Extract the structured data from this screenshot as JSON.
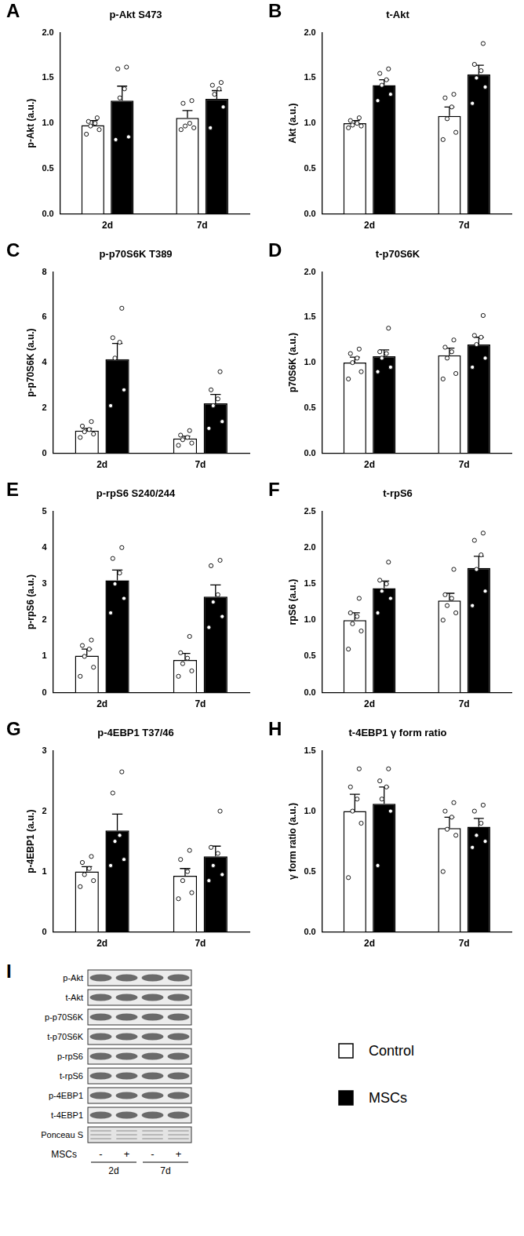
{
  "chart_data": [
    {
      "panel": "A",
      "type": "bar",
      "title": "p-Akt S473",
      "ylabel": "p-Akt (a.u.)",
      "categories": [
        "2d",
        "7d"
      ],
      "grid": false,
      "ylim": [
        0,
        2
      ],
      "yticks": [
        {
          "value": 0,
          "label": "0.0"
        },
        0.5,
        {
          "value": 1,
          "label": "1.0"
        },
        1.5,
        {
          "value": 2,
          "label": "2.0"
        }
      ],
      "series": [
        {
          "name": "Control",
          "color": "#ffffff",
          "values": [
            0.98,
            1.06
          ],
          "errors": [
            0.05,
            0.08
          ],
          "points": [
            [
              0.88,
              0.93,
              0.97,
              1.0,
              1.02,
              1.06
            ],
            [
              0.93,
              0.95,
              0.97,
              1.0,
              1.22,
              1.25
            ]
          ]
        },
        {
          "name": "MSCs",
          "color": "#000000",
          "values": [
            1.25,
            1.27
          ],
          "errors": [
            0.16,
            0.09
          ],
          "points": [
            [
              0.82,
              0.85,
              1.28,
              1.38,
              1.6,
              1.62
            ],
            [
              0.95,
              1.18,
              1.32,
              1.38,
              1.42,
              1.45
            ]
          ]
        }
      ]
    },
    {
      "panel": "B",
      "type": "bar",
      "title": "t-Akt",
      "ylabel": "Akt (a.u.)",
      "categories": [
        "2d",
        "7d"
      ],
      "grid": false,
      "ylim": [
        0,
        2
      ],
      "yticks": [
        {
          "value": 0,
          "label": "0.0"
        },
        0.5,
        {
          "value": 1,
          "label": "1.0"
        },
        1.5,
        {
          "value": 2,
          "label": "2.0"
        }
      ],
      "series": [
        {
          "name": "Control",
          "color": "#ffffff",
          "values": [
            1.0,
            1.08
          ],
          "errors": [
            0.03,
            0.1
          ],
          "points": [
            [
              0.95,
              0.97,
              0.98,
              1.0,
              1.03,
              1.06
            ],
            [
              0.82,
              0.9,
              1.05,
              1.18,
              1.28,
              1.32
            ]
          ]
        },
        {
          "name": "MSCs",
          "color": "#000000",
          "values": [
            1.42,
            1.54
          ],
          "errors": [
            0.06,
            0.1
          ],
          "points": [
            [
              1.25,
              1.32,
              1.42,
              1.48,
              1.55,
              1.6
            ],
            [
              1.22,
              1.4,
              1.5,
              1.58,
              1.65,
              1.88
            ]
          ]
        }
      ]
    },
    {
      "panel": "C",
      "type": "bar",
      "title": "p-p70S6K T389",
      "ylabel": "p-p70S6K (a.u.)",
      "categories": [
        "2d",
        "7d"
      ],
      "grid": false,
      "ylim": [
        0,
        8
      ],
      "yticks": [
        0,
        2,
        4,
        6,
        8
      ],
      "series": [
        {
          "name": "Control",
          "color": "#ffffff",
          "values": [
            1.0,
            0.65
          ],
          "errors": [
            0.1,
            0.1
          ],
          "points": [
            [
              0.7,
              0.85,
              0.95,
              1.05,
              1.2,
              1.4
            ],
            [
              0.35,
              0.45,
              0.6,
              0.7,
              0.8,
              1.0
            ]
          ]
        },
        {
          "name": "MSCs",
          "color": "#000000",
          "values": [
            4.15,
            2.2
          ],
          "errors": [
            0.7,
            0.4
          ],
          "points": [
            [
              2.1,
              2.8,
              4.2,
              4.9,
              5.1,
              6.4
            ],
            [
              1.1,
              1.4,
              2.1,
              2.4,
              2.8,
              3.6
            ]
          ]
        }
      ]
    },
    {
      "panel": "D",
      "type": "bar",
      "title": "t-p70S6K",
      "ylabel": "p70S6K (a.u.)",
      "categories": [
        "2d",
        "7d"
      ],
      "grid": false,
      "ylim": [
        0,
        2
      ],
      "yticks": [
        {
          "value": 0,
          "label": "0.0"
        },
        0.5,
        {
          "value": 1,
          "label": "1.0"
        },
        1.5,
        {
          "value": 2,
          "label": "2.0"
        }
      ],
      "series": [
        {
          "name": "Control",
          "color": "#ffffff",
          "values": [
            1.0,
            1.08
          ],
          "errors": [
            0.06,
            0.08
          ],
          "points": [
            [
              0.82,
              0.9,
              1.0,
              1.05,
              1.1,
              1.15
            ],
            [
              0.82,
              0.88,
              1.05,
              1.12,
              1.17,
              1.25
            ]
          ]
        },
        {
          "name": "MSCs",
          "color": "#000000",
          "values": [
            1.07,
            1.2
          ],
          "errors": [
            0.07,
            0.08
          ],
          "points": [
            [
              0.9,
              0.95,
              1.05,
              1.1,
              1.12,
              1.38
            ],
            [
              0.95,
              1.05,
              1.2,
              1.28,
              1.3,
              1.52
            ]
          ]
        }
      ]
    },
    {
      "panel": "E",
      "type": "bar",
      "title": "p-rpS6 S240/244",
      "ylabel": "p-rpS6 (a.u.)",
      "categories": [
        "2d",
        "7d"
      ],
      "grid": false,
      "ylim": [
        0,
        5
      ],
      "yticks": [
        0,
        1,
        2,
        3,
        4,
        5
      ],
      "series": [
        {
          "name": "Control",
          "color": "#ffffff",
          "values": [
            1.02,
            0.9
          ],
          "errors": [
            0.18,
            0.18
          ],
          "points": [
            [
              0.45,
              0.7,
              1.0,
              1.2,
              1.3,
              1.45
            ],
            [
              0.45,
              0.6,
              0.8,
              0.95,
              1.1,
              1.55
            ]
          ]
        },
        {
          "name": "MSCs",
          "color": "#000000",
          "values": [
            3.1,
            2.65
          ],
          "errors": [
            0.28,
            0.32
          ],
          "points": [
            [
              2.2,
              2.6,
              3.0,
              3.3,
              3.7,
              4.0
            ],
            [
              1.8,
              2.1,
              2.5,
              2.7,
              3.5,
              3.65
            ]
          ]
        }
      ]
    },
    {
      "panel": "F",
      "type": "bar",
      "title": "t-rpS6",
      "ylabel": "rpS6 (a.u.)",
      "categories": [
        "2d",
        "7d"
      ],
      "grid": false,
      "ylim": [
        0,
        2.5
      ],
      "yticks": [
        {
          "value": 0,
          "label": "0.0"
        },
        0.5,
        {
          "value": 1,
          "label": "1.0"
        },
        1.5,
        {
          "value": 2,
          "label": "2.0"
        },
        2.5
      ],
      "series": [
        {
          "name": "Control",
          "color": "#ffffff",
          "values": [
            1.0,
            1.27
          ],
          "errors": [
            0.1,
            0.1
          ],
          "points": [
            [
              0.6,
              0.85,
              0.95,
              1.05,
              1.1,
              1.3
            ],
            [
              1.0,
              1.1,
              1.2,
              1.3,
              1.35,
              1.7
            ]
          ]
        },
        {
          "name": "MSCs",
          "color": "#000000",
          "values": [
            1.44,
            1.72
          ],
          "errors": [
            0.1,
            0.16
          ],
          "points": [
            [
              1.1,
              1.3,
              1.4,
              1.5,
              1.55,
              1.8
            ],
            [
              1.2,
              1.4,
              1.7,
              1.9,
              2.1,
              2.2
            ]
          ]
        }
      ]
    },
    {
      "panel": "G",
      "type": "bar",
      "title": "p-4EBP1 T37/46",
      "ylabel": "p-4EBP1 (a.u.)",
      "categories": [
        "2d",
        "7d"
      ],
      "grid": false,
      "ylim": [
        0,
        3
      ],
      "yticks": [
        0,
        1,
        2,
        3
      ],
      "series": [
        {
          "name": "Control",
          "color": "#ffffff",
          "values": [
            1.0,
            0.93
          ],
          "errors": [
            0.08,
            0.12
          ],
          "points": [
            [
              0.75,
              0.85,
              0.95,
              1.05,
              1.15,
              1.25
            ],
            [
              0.55,
              0.65,
              0.85,
              1.0,
              1.2,
              1.35
            ]
          ]
        },
        {
          "name": "MSCs",
          "color": "#000000",
          "values": [
            1.68,
            1.25
          ],
          "errors": [
            0.27,
            0.17
          ],
          "points": [
            [
              1.1,
              1.2,
              1.5,
              1.6,
              2.3,
              2.65
            ],
            [
              0.85,
              0.95,
              1.1,
              1.3,
              1.4,
              2.0
            ]
          ]
        }
      ]
    },
    {
      "panel": "H",
      "type": "bar",
      "title": "t-4EBP1 γ form ratio",
      "ylabel": "γ form ratio (a.u.)",
      "categories": [
        "2d",
        "7d"
      ],
      "grid": false,
      "ylim": [
        0,
        1.5
      ],
      "yticks": [
        {
          "value": 0,
          "label": "0.0"
        },
        0.5,
        {
          "value": 1,
          "label": "1.0"
        },
        1.5
      ],
      "series": [
        {
          "name": "Control",
          "color": "#ffffff",
          "values": [
            1.0,
            0.86
          ],
          "errors": [
            0.14,
            0.09
          ],
          "points": [
            [
              0.45,
              0.9,
              1.0,
              1.1,
              1.2,
              1.35
            ],
            [
              0.5,
              0.8,
              0.85,
              0.95,
              1.0,
              1.07
            ]
          ]
        },
        {
          "name": "MSCs",
          "color": "#000000",
          "values": [
            1.06,
            0.87
          ],
          "errors": [
            0.14,
            0.07
          ],
          "points": [
            [
              0.55,
              1.0,
              1.1,
              1.2,
              1.25,
              1.35
            ],
            [
              0.7,
              0.75,
              0.8,
              0.9,
              1.0,
              1.05
            ]
          ]
        }
      ]
    }
  ],
  "blot": {
    "panel": "I",
    "rows": [
      "p-Akt",
      "t-Akt",
      "p-p70S6K",
      "t-p70S6K",
      "p-rpS6",
      "t-rpS6",
      "p-4EBP1",
      "t-4EBP1",
      "Ponceau S"
    ],
    "lane_label": "MSCs",
    "lanes": [
      "-",
      "+",
      "-",
      "+"
    ],
    "groups": [
      "2d",
      "7d"
    ]
  }
}
